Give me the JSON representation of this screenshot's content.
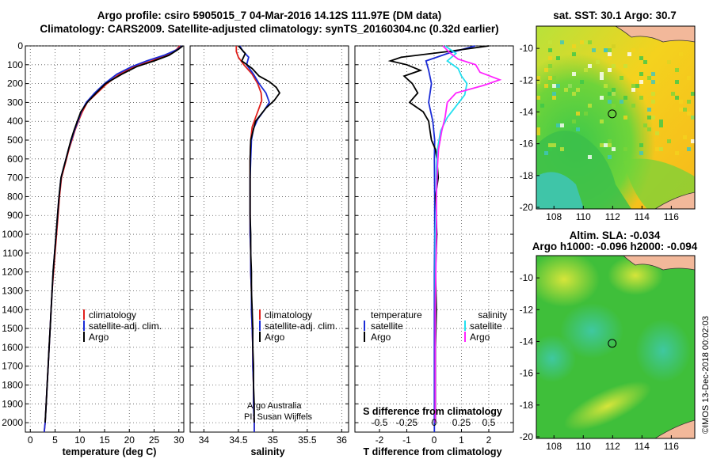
{
  "header": {
    "line1": "Argo profile: csiro 5905015_7 04-Mar-2016 14.12S 111.97E (DM data)",
    "line2": "Climatology: CARS2009. Satellite-adjusted climatology: synTS_20160304.nc (0.32d earlier)"
  },
  "colors": {
    "climatology": "#e0201c",
    "satellite": "#1a2bd6",
    "argo": "#000000",
    "salinity_satellite": "#22e0f0",
    "salinity_argo": "#ff22ff"
  },
  "depth_axis": {
    "ticks": [
      "0",
      "100",
      "200",
      "300",
      "400",
      "500",
      "600",
      "700",
      "800",
      "900",
      "1000",
      "1100",
      "1200",
      "1300",
      "1400",
      "1500",
      "1600",
      "1700",
      "1800",
      "1900",
      "2000"
    ],
    "ylim": [
      0,
      2050
    ]
  },
  "chart_data": [
    {
      "type": "line",
      "name": "temperature",
      "xlabel": "temperature (deg C)",
      "ylabel": "",
      "xlim": [
        -1,
        31
      ],
      "ylim": [
        0,
        2050
      ],
      "x_ticks": [
        "0",
        "5",
        "10",
        "15",
        "20",
        "25",
        "30"
      ],
      "x_tick_values": [
        0,
        5,
        10,
        15,
        20,
        25,
        30
      ],
      "legend": [
        "climatology",
        "satellite-adj. clim.",
        "Argo"
      ],
      "series": [
        {
          "name": "climatology",
          "color": "#e0201c",
          "x": [
            30.2,
            29.5,
            27.5,
            24.5,
            21,
            18,
            15.5,
            13.5,
            11.5,
            10.5,
            9.7,
            9,
            8.4,
            7.8,
            7.3,
            6.8,
            6.3,
            5.9,
            5.6,
            5.3,
            5,
            4.7,
            4.4,
            4.2,
            4,
            3.8,
            3.6,
            3.4,
            3.2,
            3,
            2.8
          ],
          "y": [
            0,
            20,
            50,
            80,
            110,
            150,
            200,
            250,
            300,
            350,
            400,
            450,
            500,
            550,
            600,
            650,
            700,
            800,
            900,
            1000,
            1100,
            1200,
            1300,
            1400,
            1500,
            1600,
            1700,
            1800,
            1900,
            2000,
            2050
          ]
        },
        {
          "name": "satellite-adj. clim.",
          "color": "#1a2bd6",
          "x": [
            30.7,
            29.6,
            27,
            23.5,
            20.5,
            17.5,
            15,
            13,
            11.3,
            10.3,
            9.6,
            8.9,
            8.3,
            7.7,
            7.2,
            6.7,
            6.2,
            5.8,
            5.5,
            5.2,
            4.9,
            4.6,
            4.4,
            4.2,
            4,
            3.8,
            3.6,
            3.4,
            3.2,
            3,
            2.8
          ],
          "y": [
            0,
            20,
            50,
            80,
            110,
            150,
            200,
            250,
            300,
            350,
            400,
            450,
            500,
            550,
            600,
            650,
            700,
            800,
            900,
            1000,
            1100,
            1200,
            1300,
            1400,
            1500,
            1600,
            1700,
            1800,
            1900,
            2000,
            2050
          ]
        },
        {
          "name": "Argo",
          "color": "#000000",
          "x": [
            30.8,
            29.8,
            28,
            25,
            21.5,
            18.5,
            15.2,
            13.3,
            11.5,
            10.2,
            9.5,
            8.8,
            8.2,
            7.7,
            7.2,
            6.7,
            6.2,
            5.8,
            5.5,
            5.2,
            4.9,
            4.6,
            4.4,
            4.2,
            4,
            3.8,
            3.6,
            3.4,
            3.2,
            3
          ],
          "y": [
            0,
            20,
            50,
            80,
            110,
            150,
            200,
            250,
            300,
            350,
            400,
            450,
            500,
            550,
            600,
            650,
            700,
            800,
            900,
            1000,
            1100,
            1200,
            1300,
            1400,
            1500,
            1600,
            1700,
            1800,
            1900,
            2000
          ]
        }
      ]
    },
    {
      "type": "line",
      "name": "salinity",
      "xlabel": "salinity",
      "ylabel": "",
      "xlim": [
        33.8,
        36.1
      ],
      "ylim": [
        0,
        2050
      ],
      "x_ticks": [
        "34",
        "34.5",
        "35",
        "35.5",
        "36"
      ],
      "x_tick_values": [
        34,
        34.5,
        35,
        35.5,
        36
      ],
      "legend": [
        "climatology",
        "satellite-adj. clim.",
        "Argo"
      ],
      "annotations": [
        "Argo Australia",
        "PI: Susan Wijffels"
      ],
      "series": [
        {
          "name": "climatology",
          "color": "#e0201c",
          "x": [
            34.47,
            34.47,
            34.5,
            34.58,
            34.7,
            34.78,
            34.83,
            34.84,
            34.8,
            34.75,
            34.7,
            34.68,
            34.67,
            34.67,
            34.67,
            34.67,
            34.67,
            34.68,
            34.68,
            34.69,
            34.69,
            34.7,
            34.71,
            34.71,
            34.72,
            34.72,
            34.73,
            34.73,
            34.73
          ],
          "y": [
            0,
            30,
            60,
            100,
            150,
            200,
            250,
            290,
            330,
            380,
            430,
            500,
            600,
            700,
            800,
            900,
            1000,
            1100,
            1200,
            1300,
            1400,
            1500,
            1600,
            1700,
            1800,
            1900,
            2000,
            2050,
            2050
          ]
        },
        {
          "name": "satellite-adj. clim.",
          "color": "#1a2bd6",
          "x": [
            34.52,
            34.57,
            34.65,
            34.62,
            34.72,
            34.8,
            34.9,
            34.95,
            34.88,
            34.78,
            34.72,
            34.69,
            34.68,
            34.67,
            34.67,
            34.67,
            34.67,
            34.68,
            34.68,
            34.69,
            34.69,
            34.7,
            34.71,
            34.71,
            34.72,
            34.72,
            34.73,
            34.73
          ],
          "y": [
            0,
            30,
            60,
            100,
            150,
            200,
            250,
            300,
            340,
            390,
            440,
            500,
            600,
            700,
            800,
            900,
            1000,
            1100,
            1200,
            1300,
            1400,
            1500,
            1600,
            1700,
            1800,
            1900,
            2000,
            2050
          ]
        },
        {
          "name": "Argo",
          "color": "#000000",
          "x": [
            34.5,
            34.6,
            34.55,
            34.7,
            34.8,
            34.95,
            35.05,
            35.1,
            35.02,
            34.9,
            34.75,
            34.68,
            34.67,
            34.67,
            34.67,
            34.67,
            34.68,
            34.68,
            34.69,
            34.69,
            34.7,
            34.71,
            34.71,
            34.72,
            34.72,
            34.73,
            34.73
          ],
          "y": [
            0,
            40,
            80,
            120,
            160,
            190,
            220,
            250,
            290,
            330,
            400,
            500,
            600,
            700,
            800,
            900,
            1000,
            1100,
            1200,
            1300,
            1400,
            1500,
            1600,
            1700,
            1800,
            1900,
            2000
          ]
        }
      ]
    },
    {
      "type": "line",
      "name": "difference-from-climatology",
      "xlabel": "T difference from climatology",
      "x2label": "S difference from climatology",
      "ylabel": "",
      "xlim": [
        -2.9,
        2.9
      ],
      "ylim": [
        0,
        2050
      ],
      "x_ticks": [
        "-2",
        "-1",
        "0",
        "1",
        "2"
      ],
      "x_tick_values": [
        -2,
        -1,
        0,
        1,
        2
      ],
      "x2_ticks": [
        "-0.5",
        "-0.25",
        "0",
        "0.25",
        "0.5"
      ],
      "x2_tick_values": [
        -0.5,
        -0.25,
        0,
        0.25,
        0.5
      ],
      "legend_temperature": {
        "heading": "temperature",
        "items": [
          "satellite",
          "Argo"
        ]
      },
      "legend_salinity": {
        "heading": "salinity",
        "items": [
          "satellite",
          "Argo"
        ]
      },
      "series": [
        {
          "name": "temperature satellite",
          "color": "#1a2bd6",
          "x": [
            1.5,
            0.5,
            -0.3,
            -0.2,
            -0.1,
            -0.2,
            -0.05,
            0.02,
            0.01,
            0.02,
            0.02,
            0.01,
            0.01,
            0.01,
            0.01,
            0.01,
            0.01,
            0.01
          ],
          "y": [
            0,
            40,
            80,
            130,
            200,
            300,
            400,
            500,
            600,
            800,
            1000,
            1200,
            1400,
            1600,
            1800,
            1900,
            2000,
            2050
          ]
        },
        {
          "name": "temperature Argo",
          "color": "#000000",
          "x": [
            2,
            0.5,
            -1.2,
            -1.6,
            -1,
            -0.5,
            -1.1,
            -0.8,
            -0.6,
            -0.9,
            -0.4,
            -0.2,
            -0.15,
            -0.1,
            0.05,
            0.1,
            0.15,
            0.05,
            0.1,
            0.05,
            0.08,
            0.05,
            0.05,
            0.05
          ],
          "y": [
            0,
            30,
            60,
            80,
            100,
            130,
            160,
            200,
            250,
            300,
            350,
            400,
            450,
            500,
            550,
            600,
            700,
            800,
            1000,
            1200,
            1400,
            1600,
            1800,
            2000
          ]
        },
        {
          "name": "salinity satellite",
          "color": "#22e0f0",
          "x": [
            0.1,
            0.2,
            0.12,
            0.22,
            0.25,
            0.3,
            0.28,
            0.2,
            0.12,
            0.06,
            0.03,
            0.02,
            0.02,
            0.01,
            0.01,
            0.01,
            0.01,
            0.01,
            0.01
          ],
          "y": [
            0,
            40,
            80,
            120,
            160,
            200,
            260,
            320,
            380,
            450,
            550,
            650,
            800,
            1000,
            1200,
            1400,
            1600,
            1800,
            2000
          ]
        },
        {
          "name": "salinity Argo",
          "color": "#ff22ff",
          "x": [
            0.08,
            0.15,
            0.22,
            0.38,
            0.42,
            0.6,
            0.45,
            0.2,
            0.12,
            0.1,
            0.07,
            0.04,
            0.03,
            0.02,
            0.02,
            0.01,
            0.01,
            0.01
          ],
          "y": [
            0,
            40,
            70,
            100,
            140,
            180,
            210,
            250,
            300,
            380,
            450,
            550,
            650,
            800,
            1000,
            1400,
            1800,
            2000
          ]
        }
      ]
    },
    {
      "type": "heatmap",
      "name": "satellite-sst-map",
      "title": "sat. SST: 30.1 Argo: 30.7",
      "x_ticks": [
        "108",
        "110",
        "112",
        "114",
        "116"
      ],
      "x_tick_values": [
        108,
        110,
        112,
        114,
        116
      ],
      "y_ticks": [
        "-10",
        "-12",
        "-14",
        "-16",
        "-18",
        "-20"
      ],
      "y_tick_values": [
        -10,
        -12,
        -14,
        -16,
        -18,
        -20
      ],
      "xlim": [
        106.8,
        117.6
      ],
      "ylim": [
        -20.1,
        -8.6
      ],
      "marker": {
        "lon": 111.97,
        "lat": -14.12
      }
    },
    {
      "type": "heatmap",
      "name": "altimetry-sla-map",
      "title": "Altim. SLA: -0.034",
      "subtitle": "Argo h1000: -0.096 h2000: -0.094",
      "x_ticks": [
        "108",
        "110",
        "112",
        "114",
        "116"
      ],
      "x_tick_values": [
        108,
        110,
        112,
        114,
        116
      ],
      "y_ticks": [
        "-10",
        "-12",
        "-14",
        "-16",
        "-18",
        "-20"
      ],
      "y_tick_values": [
        -10,
        -12,
        -14,
        -16,
        -18,
        -20
      ],
      "xlim": [
        106.8,
        117.6
      ],
      "ylim": [
        -20.1,
        -8.6
      ],
      "marker": {
        "lon": 111.97,
        "lat": -14.12
      }
    }
  ],
  "footer": {
    "stamp": "©IMOS 13-Dec-2018 00:02:03"
  }
}
